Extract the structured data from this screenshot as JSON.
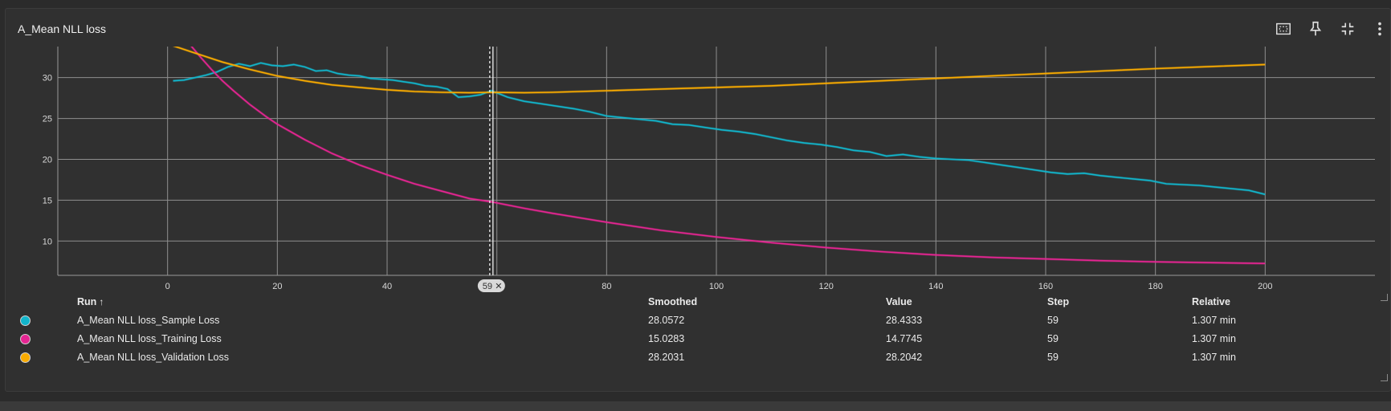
{
  "card": {
    "title": "A_Mean NLL loss"
  },
  "toolbar": {
    "buttons": [
      {
        "name": "fit-domain-button",
        "icon": "fit-domain-icon"
      },
      {
        "name": "pin-button",
        "icon": "pin-icon"
      },
      {
        "name": "collapse-button",
        "icon": "collapse-icon"
      },
      {
        "name": "more-button",
        "icon": "more-vert-icon"
      }
    ]
  },
  "chart_data": {
    "type": "line",
    "title": "A_Mean NLL loss",
    "xlabel": "",
    "ylabel": "",
    "xlim": [
      -20,
      220
    ],
    "ylim": [
      5.8,
      33.8
    ],
    "xticks": [
      0,
      20,
      40,
      60,
      80,
      100,
      120,
      140,
      160,
      180,
      200
    ],
    "yticks": [
      10,
      15,
      20,
      25,
      30
    ],
    "grid": true,
    "hover": {
      "step": 59,
      "label": "59"
    },
    "series": [
      {
        "name": "A_Mean NLL loss_Sample Loss",
        "color": "#12b5cb",
        "x": [
          1,
          3,
          5,
          7,
          9,
          11,
          13,
          15,
          17,
          19,
          21,
          23,
          25,
          27,
          29,
          31,
          33,
          35,
          37,
          39,
          41,
          43,
          45,
          47,
          49,
          51,
          53,
          55,
          57,
          59,
          62,
          65,
          68,
          71,
          74,
          77,
          80,
          83,
          86,
          89,
          92,
          95,
          98,
          101,
          104,
          107,
          110,
          113,
          116,
          119,
          122,
          125,
          128,
          131,
          134,
          137,
          140,
          143,
          146,
          149,
          152,
          155,
          158,
          161,
          164,
          167,
          170,
          173,
          176,
          179,
          182,
          185,
          188,
          191,
          194,
          197,
          200
        ],
        "y": [
          29.6,
          29.7,
          30.0,
          30.3,
          30.7,
          31.3,
          31.7,
          31.4,
          31.8,
          31.5,
          31.4,
          31.6,
          31.3,
          30.8,
          30.9,
          30.5,
          30.3,
          30.2,
          29.9,
          29.8,
          29.7,
          29.5,
          29.3,
          29.0,
          28.9,
          28.6,
          27.6,
          27.7,
          27.9,
          28.4,
          27.6,
          27.1,
          26.8,
          26.5,
          26.2,
          25.8,
          25.3,
          25.1,
          24.9,
          24.7,
          24.3,
          24.2,
          23.9,
          23.6,
          23.4,
          23.1,
          22.7,
          22.3,
          22.0,
          21.8,
          21.5,
          21.1,
          20.9,
          20.4,
          20.6,
          20.3,
          20.1,
          20.0,
          19.9,
          19.6,
          19.3,
          19.0,
          18.7,
          18.4,
          18.2,
          18.3,
          18.0,
          17.8,
          17.6,
          17.4,
          17.0,
          16.9,
          16.8,
          16.6,
          16.4,
          16.2,
          15.7
        ],
        "smoothed_at_hover": "28.0572",
        "value_at_hover": "28.4333",
        "step_at_hover": "59",
        "relative_at_hover": "1.307 min"
      },
      {
        "name": "A_Mean NLL loss_Training Loss",
        "color": "#e52592",
        "x": [
          4,
          6,
          8,
          10,
          12,
          15,
          18,
          20,
          25,
          30,
          35,
          40,
          45,
          50,
          55,
          59,
          65,
          70,
          80,
          90,
          100,
          110,
          120,
          130,
          140,
          150,
          160,
          170,
          180,
          190,
          200
        ],
        "y": [
          34.1,
          32.5,
          31.0,
          29.6,
          28.4,
          26.7,
          25.2,
          24.3,
          22.4,
          20.7,
          19.3,
          18.1,
          17.0,
          16.1,
          15.2,
          14.8,
          14.0,
          13.4,
          12.3,
          11.3,
          10.5,
          9.8,
          9.2,
          8.7,
          8.3,
          8.0,
          7.8,
          7.6,
          7.45,
          7.35,
          7.25
        ],
        "smoothed_at_hover": "15.0283",
        "value_at_hover": "14.7745",
        "step_at_hover": "59",
        "relative_at_hover": "1.307 min"
      },
      {
        "name": "A_Mean NLL loss_Validation Loss",
        "color": "#f9ab00",
        "x": [
          1,
          5,
          10,
          15,
          20,
          25,
          30,
          35,
          40,
          45,
          50,
          55,
          59,
          65,
          70,
          80,
          90,
          100,
          110,
          120,
          130,
          140,
          150,
          160,
          170,
          180,
          190,
          200
        ],
        "y": [
          33.9,
          33.0,
          31.9,
          31.0,
          30.2,
          29.6,
          29.1,
          28.8,
          28.5,
          28.3,
          28.2,
          28.15,
          28.2,
          28.15,
          28.2,
          28.4,
          28.6,
          28.8,
          29.0,
          29.3,
          29.6,
          29.9,
          30.2,
          30.5,
          30.8,
          31.1,
          31.35,
          31.6
        ],
        "smoothed_at_hover": "28.2031",
        "value_at_hover": "28.2042",
        "step_at_hover": "59",
        "relative_at_hover": "1.307 min"
      }
    ]
  },
  "table": {
    "headers": {
      "run": "Run",
      "sort_icon": "↑",
      "smoothed": "Smoothed",
      "value": "Value",
      "step": "Step",
      "relative": "Relative"
    },
    "rows": [
      {
        "color": "#12b5cb",
        "run": "A_Mean NLL loss_Sample Loss",
        "smoothed": "28.0572",
        "value": "28.4333",
        "step": "59",
        "relative": "1.307 min"
      },
      {
        "color": "#e52592",
        "run": "A_Mean NLL loss_Training Loss",
        "smoothed": "15.0283",
        "value": "14.7745",
        "step": "59",
        "relative": "1.307 min"
      },
      {
        "color": "#f9ab00",
        "run": "A_Mean NLL loss_Validation Loss",
        "smoothed": "28.2031",
        "value": "28.2042",
        "step": "59",
        "relative": "1.307 min"
      }
    ]
  }
}
